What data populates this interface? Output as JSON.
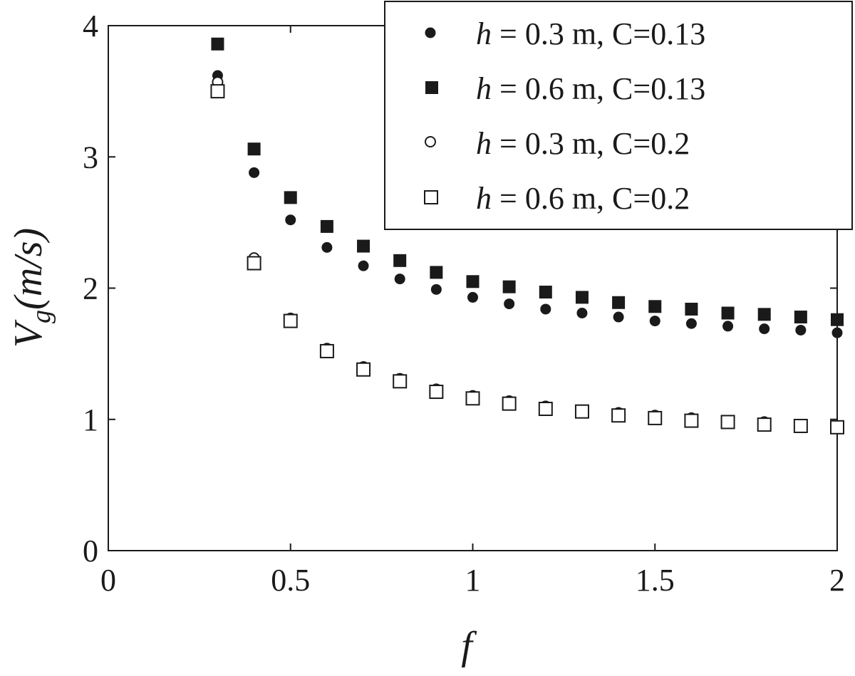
{
  "chart_data": {
    "type": "scatter",
    "xlabel": "f",
    "ylabel": {
      "main": "V",
      "sub": "g",
      "rest": "(m/s)"
    },
    "xlim": [
      0,
      2
    ],
    "ylim": [
      0,
      4
    ],
    "xticks": [
      0,
      0.5,
      1,
      1.5,
      2
    ],
    "xtick_labels": [
      "0",
      "0.5",
      "1",
      "1.5",
      "2"
    ],
    "yticks": [
      0,
      1,
      2,
      3,
      4
    ],
    "ytick_labels": [
      "0",
      "1",
      "2",
      "3",
      "4"
    ],
    "grid": false,
    "legend_position": "top-right",
    "x": [
      0.3,
      0.4,
      0.5,
      0.6,
      0.7,
      0.8,
      0.9,
      1.0,
      1.1,
      1.2,
      1.3,
      1.4,
      1.5,
      1.6,
      1.7,
      1.8,
      1.9,
      2.0
    ],
    "series": [
      {
        "label_var": "h",
        "label_rest": " = 0.3 m, C=0.13",
        "marker": "circle",
        "filled": true,
        "values": [
          3.62,
          2.88,
          2.52,
          2.31,
          2.17,
          2.07,
          1.99,
          1.93,
          1.88,
          1.84,
          1.81,
          1.78,
          1.75,
          1.73,
          1.71,
          1.69,
          1.68,
          1.66
        ]
      },
      {
        "label_var": "h",
        "label_rest": " = 0.6 m, C=0.13",
        "marker": "square",
        "filled": true,
        "values": [
          3.86,
          3.06,
          2.69,
          2.47,
          2.32,
          2.21,
          2.12,
          2.05,
          2.01,
          1.97,
          1.93,
          1.89,
          1.86,
          1.84,
          1.81,
          1.8,
          1.78,
          1.76
        ]
      },
      {
        "label_var": "h",
        "label_rest": " = 0.3 m, C=0.2",
        "marker": "circle",
        "filled": false,
        "values": [
          3.57,
          2.23,
          1.77,
          1.54,
          1.4,
          1.31,
          1.23,
          1.18,
          1.14,
          1.1,
          1.07,
          1.05,
          1.03,
          1.01,
          0.99,
          0.98,
          0.96,
          0.95
        ]
      },
      {
        "label_var": "h",
        "label_rest": " = 0.6 m, C=0.2",
        "marker": "square",
        "filled": false,
        "values": [
          3.5,
          2.19,
          1.75,
          1.52,
          1.38,
          1.29,
          1.21,
          1.16,
          1.12,
          1.08,
          1.06,
          1.03,
          1.01,
          0.99,
          0.98,
          0.96,
          0.95,
          0.94
        ]
      }
    ]
  }
}
